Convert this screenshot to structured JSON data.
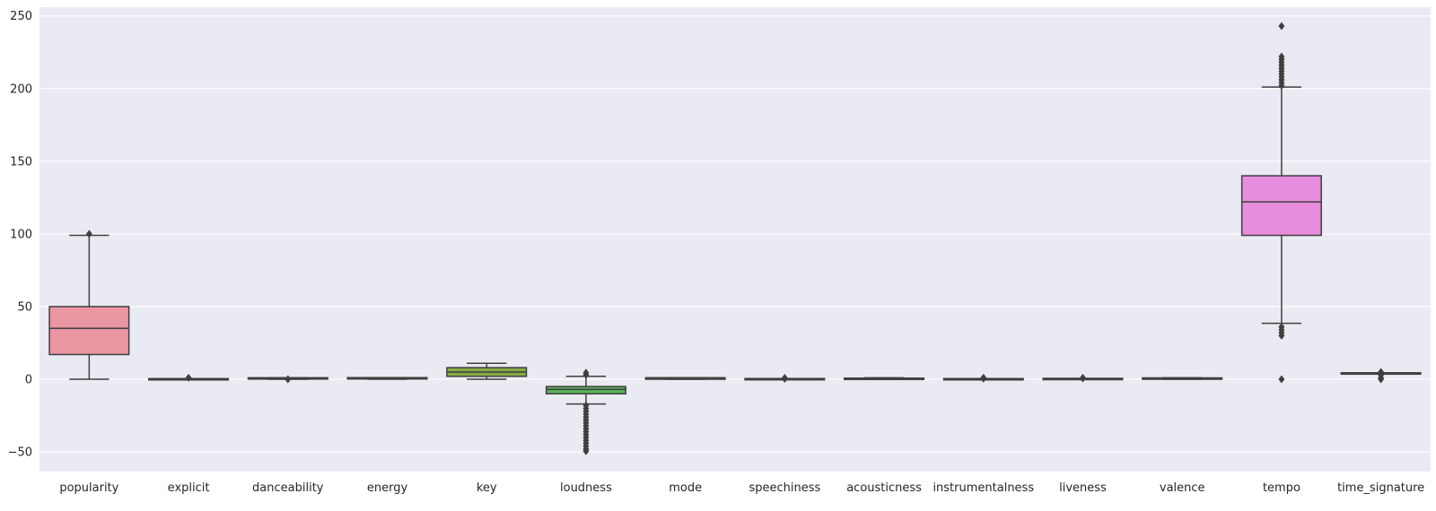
{
  "chart_data": {
    "type": "box",
    "title": "",
    "xlabel": "",
    "ylabel": "",
    "ylim": [
      -63.5,
      256
    ],
    "y_ticks": [
      -50,
      0,
      50,
      100,
      150,
      200,
      250
    ],
    "y_tick_labels": [
      "−50",
      "0",
      "50",
      "100",
      "150",
      "200",
      "250"
    ],
    "grid": true,
    "background": "#eaeaf2",
    "box_edge_color": "#3f3f3f",
    "categories": [
      "popularity",
      "explicit",
      "danceability",
      "energy",
      "key",
      "loudness",
      "mode",
      "speechiness",
      "acousticness",
      "instrumentalness",
      "liveness",
      "valence",
      "tempo",
      "time_signature"
    ],
    "boxes": [
      {
        "name": "popularity",
        "color": "#ea96a3",
        "whislo": 0,
        "q1": 17,
        "med": 35,
        "q3": 50,
        "whishi": 99,
        "fliers": [
          100
        ]
      },
      {
        "name": "explicit",
        "color": "#de9964",
        "whislo": 0,
        "q1": 0,
        "med": 0,
        "q3": 0,
        "whishi": 0,
        "fliers": [
          1
        ]
      },
      {
        "name": "danceability",
        "color": "#c4a04e",
        "whislo": 0.06,
        "q1": 0.46,
        "med": 0.58,
        "q3": 0.7,
        "whishi": 0.98,
        "fliers": [
          0.0,
          0.03
        ]
      },
      {
        "name": "energy",
        "color": "#a7a94a",
        "whislo": 0,
        "q1": 0.47,
        "med": 0.68,
        "q3": 0.85,
        "whishi": 1.0,
        "fliers": []
      },
      {
        "name": "key",
        "color": "#89ab47",
        "whislo": 0,
        "q1": 2,
        "med": 5,
        "q3": 8,
        "whishi": 11,
        "fliers": []
      },
      {
        "name": "loudness",
        "color": "#5bb25a",
        "whislo": -17,
        "q1": -10,
        "med": -7,
        "q3": -5,
        "whishi": 2,
        "fliers": [
          -18,
          -20,
          -22,
          -24,
          -26,
          -28,
          -30,
          -32,
          -34,
          -36,
          -38,
          -40,
          -42,
          -44,
          -46,
          -48,
          -49.5,
          3,
          4.5
        ]
      },
      {
        "name": "mode",
        "color": "#59b08a",
        "whislo": 0,
        "q1": 0,
        "med": 1,
        "q3": 1,
        "whishi": 1,
        "fliers": []
      },
      {
        "name": "speechiness",
        "color": "#5ab29f",
        "whislo": 0,
        "q1": 0.04,
        "med": 0.05,
        "q3": 0.08,
        "whishi": 0.14,
        "fliers": [
          0.3,
          0.6,
          0.96
        ]
      },
      {
        "name": "acousticness",
        "color": "#5cb3b3",
        "whislo": 0,
        "q1": 0.02,
        "med": 0.17,
        "q3": 0.6,
        "whishi": 1.0,
        "fliers": []
      },
      {
        "name": "instrumentalness",
        "color": "#64b2c9",
        "whislo": 0,
        "q1": 0,
        "med": 0,
        "q3": 0.05,
        "whishi": 0.12,
        "fliers": [
          0.4,
          0.9,
          1.0
        ]
      },
      {
        "name": "liveness",
        "color": "#7aaad9",
        "whislo": 0.01,
        "q1": 0.1,
        "med": 0.13,
        "q3": 0.27,
        "whishi": 0.53,
        "fliers": [
          0.6,
          0.8,
          1.0
        ]
      },
      {
        "name": "valence",
        "color": "#aca0e0",
        "whislo": 0,
        "q1": 0.26,
        "med": 0.46,
        "q3": 0.68,
        "whishi": 1.0,
        "fliers": []
      },
      {
        "name": "tempo",
        "color": "#e88cdd",
        "whislo": 38.5,
        "q1": 99,
        "med": 122,
        "q3": 140,
        "whishi": 201,
        "fliers": [
          0,
          30,
          32,
          34,
          36,
          202,
          204,
          206,
          208,
          210,
          212,
          214,
          216,
          218,
          220,
          222,
          243
        ]
      },
      {
        "name": "time_signature",
        "color": "#e892b8",
        "whislo": 4,
        "q1": 4,
        "med": 4,
        "q3": 4,
        "whishi": 4,
        "fliers": [
          0,
          1,
          3,
          5
        ]
      }
    ]
  }
}
